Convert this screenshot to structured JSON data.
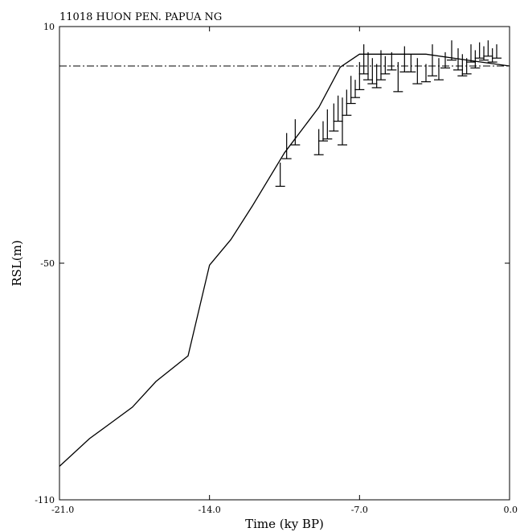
{
  "chart_data": {
    "type": "line",
    "title": "11018  HUON PEN. PAPUA NG",
    "xlabel": "Time (ky BP)",
    "ylabel": "RSL(m)",
    "xlim": [
      -21.0,
      0.0
    ],
    "ylim": [
      -110,
      10
    ],
    "x_ticks": [
      -21.0,
      -14.0,
      -7.0,
      0.0
    ],
    "x_tick_labels": [
      "-21.0",
      "-14.0",
      "-7.0",
      "0.0"
    ],
    "y_ticks": [
      -110,
      -50,
      10
    ],
    "y_tick_labels": [
      "-110",
      "-50",
      "10"
    ],
    "reference_line": {
      "y": 0,
      "style": "dash-dot"
    },
    "model_curve": {
      "x": [
        -21.0,
        -19.6,
        -18.6,
        -17.6,
        -16.5,
        -15.0,
        -14.0,
        -13.0,
        -12.0,
        -10.5,
        -8.9,
        -7.9,
        -7.0,
        -6.0,
        -3.9,
        -2.0,
        0.0
      ],
      "y": [
        -101.5,
        -94.5,
        -90.5,
        -86.5,
        -80.0,
        -73.5,
        -50.5,
        -44.0,
        -35.5,
        -22.0,
        -10.5,
        -0.3,
        3.0,
        3.0,
        3.0,
        1.5,
        0.0
      ]
    },
    "observations": [
      {
        "x": -10.7,
        "top": -24.5,
        "bottom": -30.5
      },
      {
        "x": -10.4,
        "top": -17.0,
        "bottom": -23.5
      },
      {
        "x": -10.0,
        "top": -13.5,
        "bottom": -20.0
      },
      {
        "x": -8.9,
        "top": -16.0,
        "bottom": -22.5
      },
      {
        "x": -8.7,
        "top": -14.0,
        "bottom": -19.0
      },
      {
        "x": -8.5,
        "top": -11.0,
        "bottom": -18.5
      },
      {
        "x": -8.2,
        "top": -9.5,
        "bottom": -16.5
      },
      {
        "x": -8.0,
        "top": -7.5,
        "bottom": -14.0
      },
      {
        "x": -7.8,
        "top": -8.0,
        "bottom": -20.0
      },
      {
        "x": -7.6,
        "top": -6.0,
        "bottom": -12.5
      },
      {
        "x": -7.4,
        "top": -2.5,
        "bottom": -9.5
      },
      {
        "x": -7.2,
        "top": -3.5,
        "bottom": -8.0
      },
      {
        "x": -7.0,
        "top": 1.0,
        "bottom": -6.0
      },
      {
        "x": -6.8,
        "top": 5.5,
        "bottom": -2.0
      },
      {
        "x": -6.6,
        "top": 3.5,
        "bottom": -3.5
      },
      {
        "x": -6.4,
        "top": 2.0,
        "bottom": -4.5
      },
      {
        "x": -6.2,
        "top": 0.5,
        "bottom": -5.5
      },
      {
        "x": -6.0,
        "top": 4.0,
        "bottom": -3.5
      },
      {
        "x": -5.8,
        "top": 2.5,
        "bottom": -2.0
      },
      {
        "x": -5.5,
        "top": 3.5,
        "bottom": -1.0
      },
      {
        "x": -5.2,
        "top": 1.0,
        "bottom": -6.5
      },
      {
        "x": -4.9,
        "top": 5.0,
        "bottom": -1.5
      },
      {
        "x": -4.6,
        "top": 3.0,
        "bottom": -1.5
      },
      {
        "x": -4.3,
        "top": 2.0,
        "bottom": -4.5
      },
      {
        "x": -3.9,
        "top": 0.5,
        "bottom": -4.0
      },
      {
        "x": -3.6,
        "top": 5.5,
        "bottom": -2.5
      },
      {
        "x": -3.3,
        "top": 2.0,
        "bottom": -3.5
      },
      {
        "x": -3.0,
        "top": 3.5,
        "bottom": -0.5
      },
      {
        "x": -2.7,
        "top": 6.5,
        "bottom": 1.5
      },
      {
        "x": -2.4,
        "top": 4.5,
        "bottom": -1.0
      },
      {
        "x": -2.2,
        "top": 3.0,
        "bottom": -2.5
      },
      {
        "x": -2.0,
        "top": 2.0,
        "bottom": -2.0
      },
      {
        "x": -1.8,
        "top": 5.5,
        "bottom": 1.0
      },
      {
        "x": -1.6,
        "top": 4.0,
        "bottom": -0.5
      },
      {
        "x": -1.4,
        "top": 6.0,
        "bottom": 2.0
      },
      {
        "x": -1.2,
        "top": 5.0,
        "bottom": 1.5
      },
      {
        "x": -1.0,
        "top": 6.5,
        "bottom": 2.5
      },
      {
        "x": -0.8,
        "top": 4.5,
        "bottom": 1.0
      },
      {
        "x": -0.6,
        "top": 5.5,
        "bottom": 2.0
      }
    ]
  }
}
